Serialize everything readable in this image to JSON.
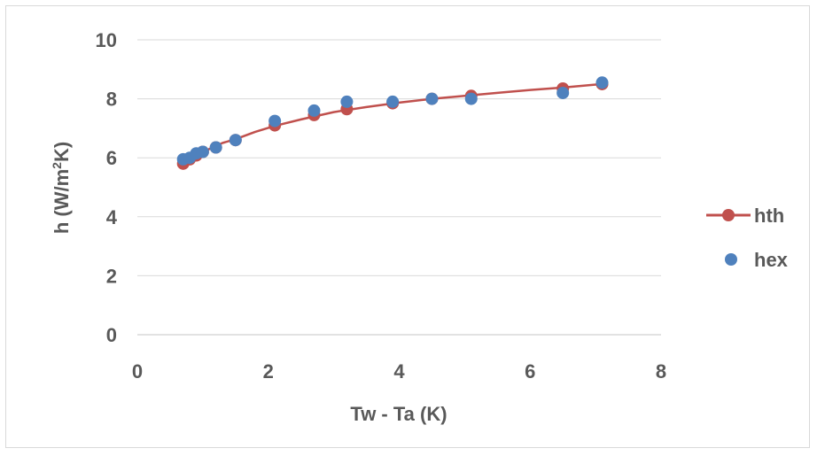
{
  "chart_data": {
    "type": "scatter",
    "xlabel": "Tw - Ta (K)",
    "ylabel_parts": [
      "h (W/m",
      "2",
      "K)"
    ],
    "xlim": [
      0,
      8
    ],
    "ylim": [
      0,
      10
    ],
    "x_ticks": [
      "0",
      "2",
      "4",
      "6",
      "8"
    ],
    "y_ticks": [
      "0",
      "2",
      "4",
      "6",
      "8",
      "10"
    ],
    "grid": "horizontal",
    "legend_position": "right",
    "series": [
      {
        "name": "hth",
        "kind": "line-with-markers",
        "color": "#c0504d",
        "x": [
          0.7,
          0.8,
          0.9,
          1.0,
          1.2,
          1.5,
          2.1,
          2.7,
          3.2,
          3.9,
          4.5,
          5.1,
          6.5,
          7.1
        ],
        "y": [
          5.8,
          5.95,
          6.08,
          6.2,
          6.35,
          6.6,
          7.1,
          7.45,
          7.65,
          7.85,
          8.0,
          8.1,
          8.35,
          8.5
        ]
      },
      {
        "name": "hex",
        "kind": "markers",
        "color": "#4f81bd",
        "x": [
          0.7,
          0.8,
          0.9,
          1.0,
          1.2,
          1.5,
          2.1,
          2.7,
          3.2,
          3.9,
          4.5,
          5.1,
          6.5,
          7.1
        ],
        "y": [
          5.95,
          6.0,
          6.15,
          6.2,
          6.35,
          6.6,
          7.25,
          7.6,
          7.9,
          7.9,
          8.0,
          8.0,
          8.2,
          8.55
        ]
      }
    ],
    "curve": {
      "series": "hth",
      "x": [
        0.7,
        0.9,
        1.1,
        1.3,
        1.5,
        1.8,
        2.1,
        2.5,
        3.0,
        3.5,
        4.0,
        4.5,
        5.0,
        5.5,
        6.0,
        6.5,
        7.1
      ],
      "y": [
        5.8,
        6.08,
        6.3,
        6.5,
        6.63,
        6.88,
        7.08,
        7.3,
        7.55,
        7.72,
        7.87,
        8.0,
        8.1,
        8.2,
        8.3,
        8.38,
        8.5
      ]
    }
  }
}
